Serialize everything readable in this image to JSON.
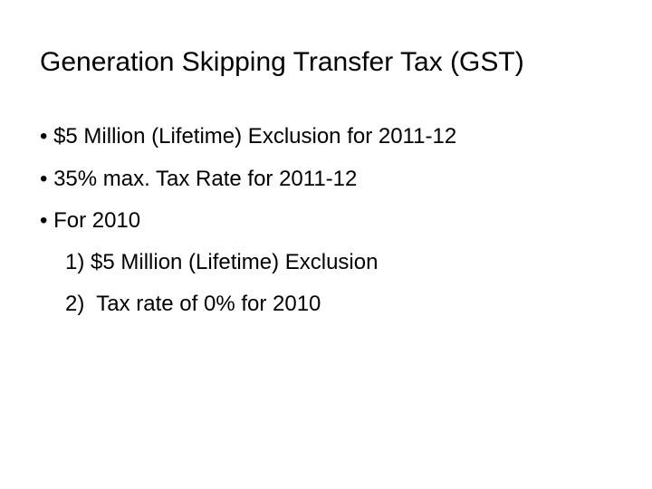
{
  "slide": {
    "title": "Generation Skipping Transfer Tax (GST)",
    "bullets": [
      "• $5 Million (Lifetime) Exclusion for 2011-12",
      "• 35% max. Tax Rate for 2011-12",
      "• For 2010"
    ],
    "sub_items": [
      "1) $5 Million (Lifetime) Exclusion",
      "2)  Tax rate of 0% for 2010"
    ]
  }
}
